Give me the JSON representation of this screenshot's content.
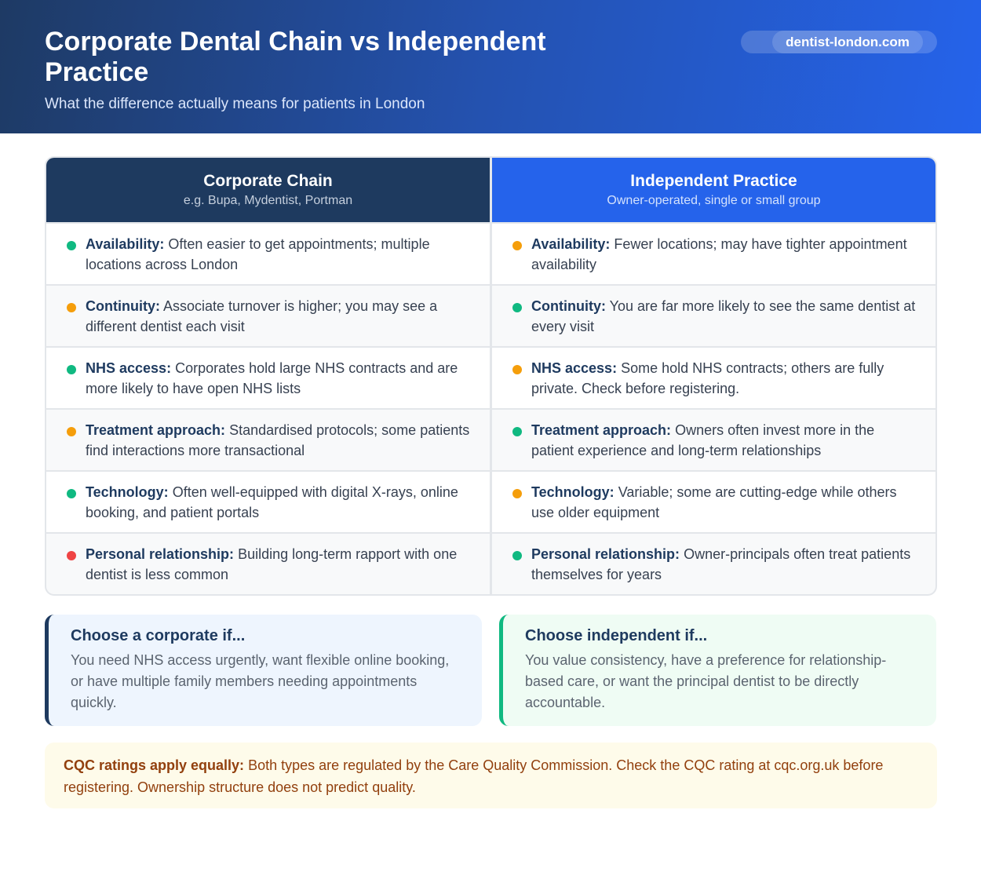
{
  "header": {
    "title": "Corporate Dental Chain vs Independent Practice",
    "subtitle": "What the difference actually means for patients in London",
    "badge": "dentist-london.com"
  },
  "columns": [
    {
      "title": "Corporate Chain",
      "subtitle": "e.g. Bupa, Mydentist, Portman",
      "color": "#1e3a5f"
    },
    {
      "title": "Independent Practice",
      "subtitle": "Owner-operated, single or small group",
      "color": "#2563eb"
    }
  ],
  "status_colors": {
    "good": "#10b981",
    "mixed": "#f59e0b",
    "bad": "#ef4444"
  },
  "rows": [
    {
      "corporate": {
        "label": "Availability:",
        "text": "Often easier to get appointments; multiple locations across London",
        "status": "good"
      },
      "independent": {
        "label": "Availability:",
        "text": "Fewer locations; may have tighter appointment availability",
        "status": "mixed"
      }
    },
    {
      "corporate": {
        "label": "Continuity:",
        "text": "Associate turnover is higher; you may see a different dentist each visit",
        "status": "mixed"
      },
      "independent": {
        "label": "Continuity:",
        "text": "You are far more likely to see the same dentist at every visit",
        "status": "good"
      }
    },
    {
      "corporate": {
        "label": "NHS access:",
        "text": "Corporates hold large NHS contracts and are more likely to have open NHS lists",
        "status": "good"
      },
      "independent": {
        "label": "NHS access:",
        "text": "Some hold NHS contracts; others are fully private. Check before registering.",
        "status": "mixed"
      }
    },
    {
      "corporate": {
        "label": "Treatment approach:",
        "text": "Standardised protocols; some patients find interactions more transactional",
        "status": "mixed"
      },
      "independent": {
        "label": "Treatment approach:",
        "text": "Owners often invest more in the patient experience and long-term relationships",
        "status": "good"
      }
    },
    {
      "corporate": {
        "label": "Technology:",
        "text": "Often well-equipped with digital X-rays, online booking, and patient portals",
        "status": "good"
      },
      "independent": {
        "label": "Technology:",
        "text": "Variable; some are cutting-edge while others use older equipment",
        "status": "mixed"
      }
    },
    {
      "corporate": {
        "label": "Personal relationship:",
        "text": "Building long-term rapport with one dentist is less common",
        "status": "bad"
      },
      "independent": {
        "label": "Personal relationship:",
        "text": "Owner-principals often treat patients themselves for years",
        "status": "good"
      }
    }
  ],
  "choose": {
    "corporate": {
      "title": "Choose a corporate if...",
      "text": "You need NHS access urgently, want flexible online booking, or have multiple family members needing appointments quickly."
    },
    "independent": {
      "title": "Choose independent if...",
      "text": "You value consistency, have a preference for relationship-based care, or want the principal dentist to be directly accountable."
    }
  },
  "note": {
    "label": "CQC ratings apply equally:",
    "text": "Both types are regulated by the Care Quality Commission. Check the CQC rating at cqc.org.uk before registering. Ownership structure does not predict quality."
  }
}
